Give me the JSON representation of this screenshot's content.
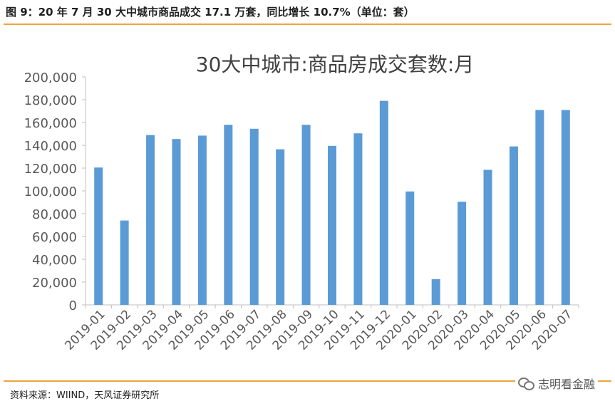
{
  "figure": {
    "caption": "图 9：20 年 7 月 30 大中城市商品成交 17.1 万套，同比增长 10.7%（单位：套）",
    "source": "资料来源：WIIND，天风证券研究所",
    "watermark": "志明看金融",
    "watermark_icon": "wechat-icon"
  },
  "chart_data": {
    "type": "bar",
    "title": "30大中城市:商品房成交套数:月",
    "xlabel": "",
    "ylabel": "",
    "ylim": [
      0,
      200000
    ],
    "yticks": [
      0,
      20000,
      40000,
      60000,
      80000,
      100000,
      120000,
      140000,
      160000,
      180000,
      200000
    ],
    "ytick_labels": [
      "0",
      "20,000",
      "40,000",
      "60,000",
      "80,000",
      "100,000",
      "120,000",
      "140,000",
      "160,000",
      "180,000",
      "200,000"
    ],
    "grid": false,
    "legend": "none",
    "bar_color": "#5b9bd5",
    "categories": [
      "2019-01",
      "2019-02",
      "2019-03",
      "2019-04",
      "2019-05",
      "2019-06",
      "2019-07",
      "2019-08",
      "2019-09",
      "2019-10",
      "2019-11",
      "2019-12",
      "2020-01",
      "2020-02",
      "2020-03",
      "2020-04",
      "2020-05",
      "2020-06",
      "2020-07"
    ],
    "values": [
      120500,
      74000,
      149000,
      145500,
      148500,
      158000,
      154500,
      136500,
      158000,
      139500,
      150500,
      179000,
      99500,
      22500,
      90500,
      118500,
      139000,
      171000,
      171000
    ]
  }
}
